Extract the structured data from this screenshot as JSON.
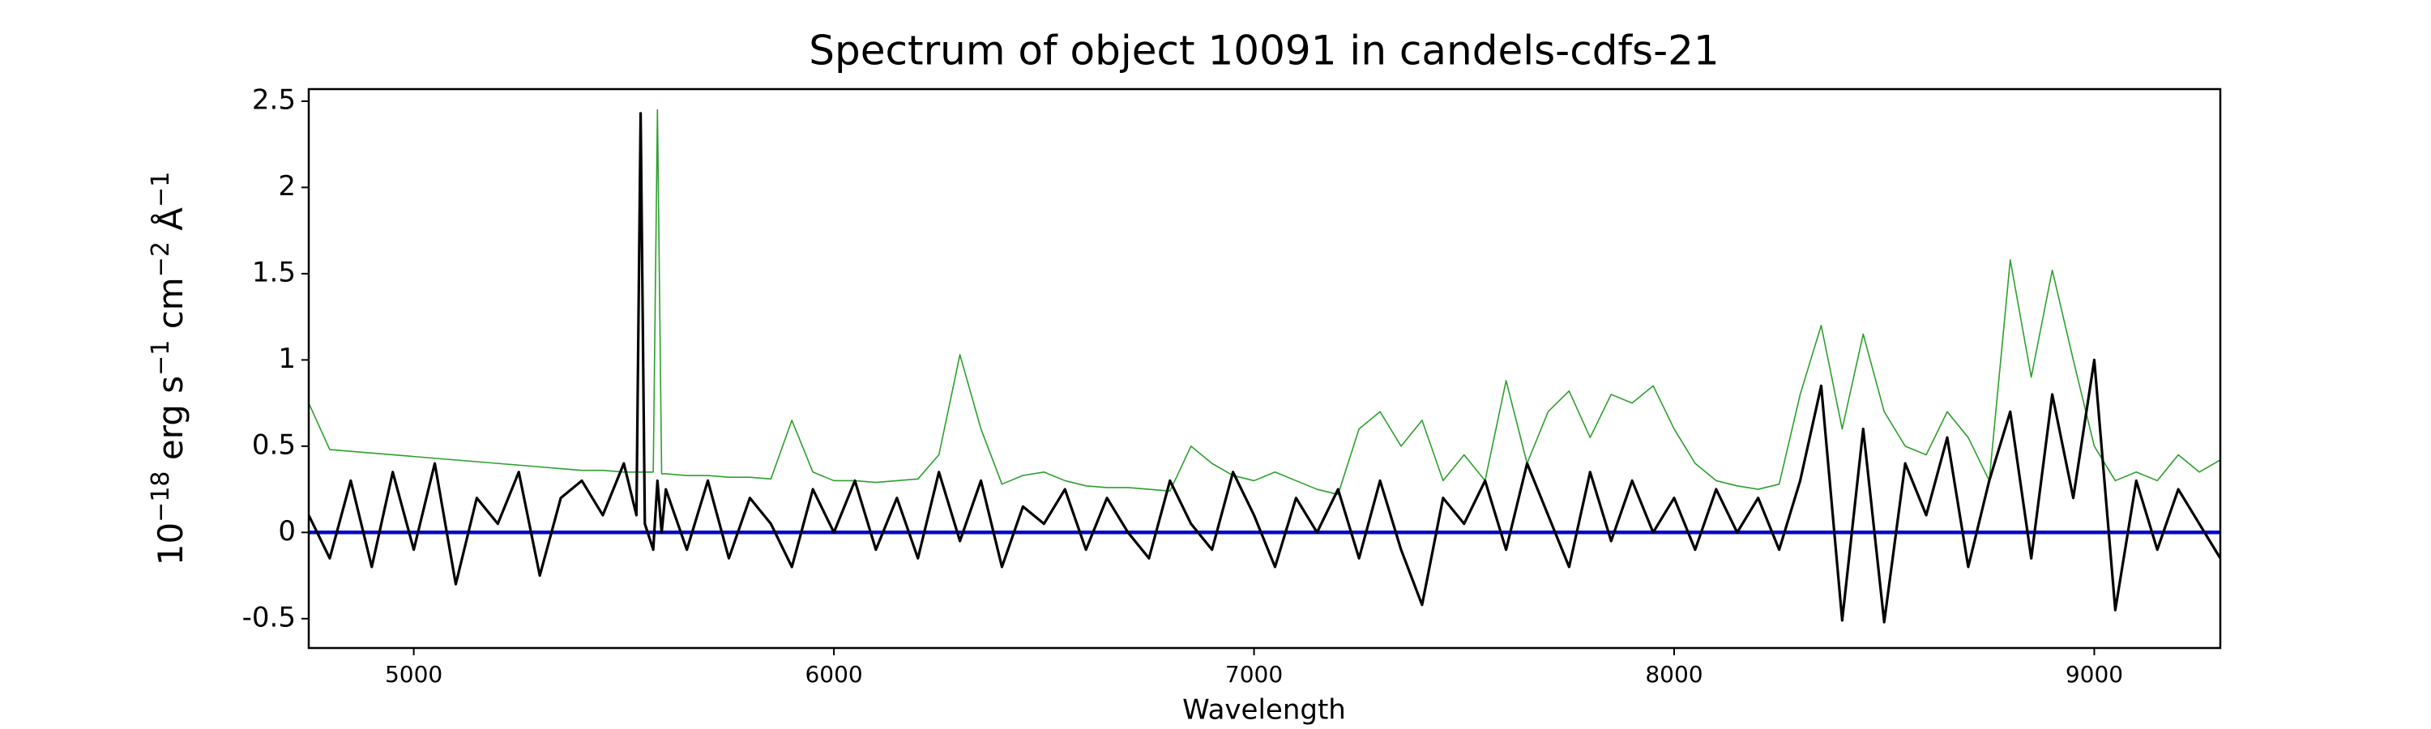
{
  "chart_data": {
    "type": "line",
    "title": "Spectrum of object 10091 in candels-cdfs-21",
    "xlabel": "Wavelength",
    "ylabel_parts": [
      "10",
      "−18",
      " erg s",
      "−1",
      " cm",
      "−2",
      " Å",
      "−1"
    ],
    "xlim": [
      4750,
      9300
    ],
    "ylim": [
      -0.67,
      2.57
    ],
    "xticks": [
      5000,
      6000,
      7000,
      8000,
      9000
    ],
    "yticks": [
      -0.5,
      0.0,
      0.5,
      1.0,
      1.5,
      2.0,
      2.5
    ],
    "series": [
      {
        "color": "#2ca02c",
        "width": 1.6,
        "x": [
          4750,
          4800,
          4850,
          4900,
          4950,
          5000,
          5050,
          5100,
          5150,
          5200,
          5250,
          5300,
          5350,
          5400,
          5450,
          5500,
          5530,
          5540,
          5550,
          5570,
          5580,
          5590,
          5600,
          5650,
          5700,
          5750,
          5800,
          5850,
          5900,
          5950,
          6000,
          6050,
          6100,
          6150,
          6200,
          6250,
          6300,
          6350,
          6400,
          6450,
          6500,
          6550,
          6600,
          6650,
          6700,
          6750,
          6800,
          6850,
          6900,
          6950,
          7000,
          7050,
          7100,
          7150,
          7200,
          7250,
          7300,
          7350,
          7400,
          7450,
          7500,
          7550,
          7600,
          7650,
          7700,
          7750,
          7800,
          7850,
          7900,
          7950,
          8000,
          8050,
          8100,
          8150,
          8200,
          8250,
          8300,
          8350,
          8400,
          8450,
          8500,
          8550,
          8600,
          8650,
          8700,
          8750,
          8800,
          8850,
          8900,
          8950,
          9000,
          9050,
          9100,
          9150,
          9200,
          9250,
          9300
        ],
        "values": [
          0.75,
          0.48,
          0.47,
          0.46,
          0.45,
          0.44,
          0.43,
          0.42,
          0.41,
          0.4,
          0.39,
          0.38,
          0.37,
          0.36,
          0.36,
          0.35,
          0.35,
          0.35,
          0.35,
          0.35,
          2.45,
          0.34,
          0.34,
          0.33,
          0.33,
          0.32,
          0.32,
          0.31,
          0.65,
          0.35,
          0.3,
          0.3,
          0.29,
          0.3,
          0.31,
          0.45,
          1.03,
          0.6,
          0.28,
          0.33,
          0.35,
          0.3,
          0.27,
          0.26,
          0.26,
          0.25,
          0.24,
          0.5,
          0.4,
          0.33,
          0.3,
          0.35,
          0.3,
          0.25,
          0.22,
          0.6,
          0.7,
          0.5,
          0.65,
          0.3,
          0.45,
          0.3,
          0.88,
          0.4,
          0.7,
          0.82,
          0.55,
          0.8,
          0.75,
          0.85,
          0.6,
          0.4,
          0.3,
          0.27,
          0.25,
          0.28,
          0.8,
          1.2,
          0.6,
          1.15,
          0.7,
          0.5,
          0.45,
          0.7,
          0.55,
          0.3,
          1.58,
          0.9,
          1.52,
          1.0,
          0.5,
          0.3,
          0.35,
          0.3,
          0.45,
          0.35,
          0.42
        ]
      },
      {
        "color": "#0000cc",
        "width": 4.5,
        "x": [
          4750,
          9300
        ],
        "values": [
          0,
          0
        ]
      },
      {
        "color": "#000000",
        "width": 3.2,
        "x": [
          4750,
          4800,
          4850,
          4900,
          4950,
          5000,
          5050,
          5100,
          5150,
          5200,
          5250,
          5300,
          5350,
          5400,
          5450,
          5500,
          5530,
          5540,
          5550,
          5570,
          5580,
          5590,
          5600,
          5650,
          5700,
          5750,
          5800,
          5850,
          5900,
          5950,
          6000,
          6050,
          6100,
          6150,
          6200,
          6250,
          6300,
          6350,
          6400,
          6450,
          6500,
          6550,
          6600,
          6650,
          6700,
          6750,
          6800,
          6850,
          6900,
          6950,
          7000,
          7050,
          7100,
          7150,
          7200,
          7250,
          7300,
          7350,
          7400,
          7450,
          7500,
          7550,
          7600,
          7650,
          7700,
          7750,
          7800,
          7850,
          7900,
          7950,
          8000,
          8050,
          8100,
          8150,
          8200,
          8250,
          8300,
          8350,
          8400,
          8450,
          8500,
          8550,
          8600,
          8650,
          8700,
          8750,
          8800,
          8850,
          8900,
          8950,
          9000,
          9050,
          9100,
          9150,
          9200,
          9250,
          9300
        ],
        "values": [
          0.1,
          -0.15,
          0.3,
          -0.2,
          0.35,
          -0.1,
          0.4,
          -0.3,
          0.2,
          0.05,
          0.35,
          -0.25,
          0.2,
          0.3,
          0.1,
          0.4,
          0.1,
          2.43,
          0.05,
          -0.1,
          0.3,
          0.0,
          0.25,
          -0.1,
          0.3,
          -0.15,
          0.2,
          0.05,
          -0.2,
          0.25,
          0.0,
          0.3,
          -0.1,
          0.2,
          -0.15,
          0.35,
          -0.05,
          0.3,
          -0.2,
          0.15,
          0.05,
          0.25,
          -0.1,
          0.2,
          0.0,
          -0.15,
          0.3,
          0.05,
          -0.1,
          0.35,
          0.1,
          -0.2,
          0.2,
          0.0,
          0.25,
          -0.15,
          0.3,
          -0.1,
          -0.42,
          0.2,
          0.05,
          0.3,
          -0.1,
          0.4,
          0.1,
          -0.2,
          0.35,
          -0.05,
          0.3,
          0.0,
          0.2,
          -0.1,
          0.25,
          0.0,
          0.2,
          -0.1,
          0.3,
          0.85,
          -0.51,
          0.6,
          -0.52,
          0.4,
          0.1,
          0.55,
          -0.2,
          0.3,
          0.7,
          -0.15,
          0.8,
          0.2,
          1.0,
          -0.45,
          0.3,
          -0.1,
          0.25,
          0.05,
          -0.15
        ]
      }
    ]
  }
}
